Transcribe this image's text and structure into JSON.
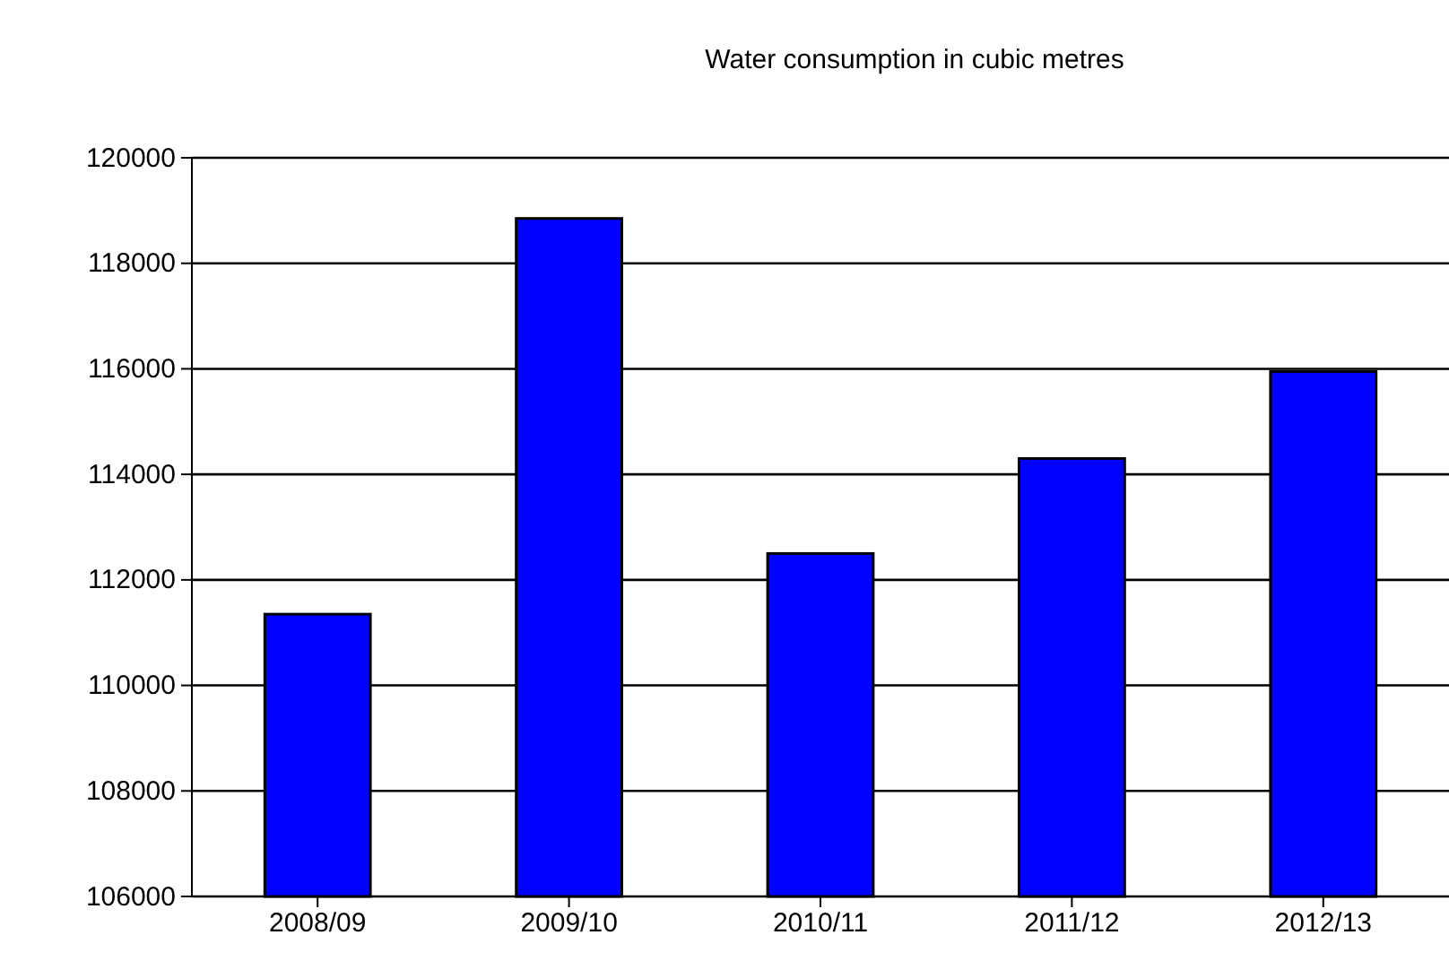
{
  "chart_data": {
    "type": "bar",
    "title": "Water consumption in cubic metres",
    "categories": [
      "2008/09",
      "2009/10",
      "2010/11",
      "2011/12",
      "2012/13"
    ],
    "values": [
      111350,
      118850,
      112500,
      114300,
      115950
    ],
    "color": "#0000ff",
    "ylim": [
      106000,
      120000
    ],
    "yticks": [
      106000,
      108000,
      110000,
      112000,
      114000,
      116000,
      118000,
      120000
    ],
    "grid": "y"
  }
}
